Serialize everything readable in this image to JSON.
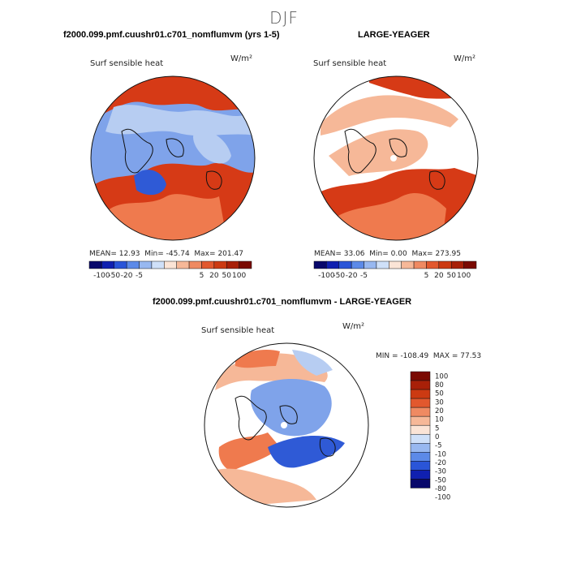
{
  "season": "DJF",
  "variable_label": "Surf sensible heat",
  "units": "W/m²",
  "panels": [
    {
      "title": "f2000.099.pmf.cuushr01.c701_nomflumvm (yrs 1-5)",
      "stats": {
        "mean_label": "MEAN=",
        "mean": "12.93",
        "min_label": "Min=",
        "min": "-45.74",
        "max_label": "Max=",
        "max": "201.47"
      }
    },
    {
      "title": "LARGE-YEAGER",
      "stats": {
        "mean_label": "MEAN=",
        "mean": "33.06",
        "min_label": "Min=",
        "min": "0.00",
        "max_label": "Max=",
        "max": "273.95"
      }
    },
    {
      "title": "f2000.099.pmf.cuushr01.c701_nomflumvm - LARGE-YEAGER",
      "stats": {
        "min_label": "MIN =",
        "min": "-108.49",
        "max_label": "MAX =",
        "max": "77.53"
      }
    }
  ],
  "colorbar_top": {
    "colors": [
      "#08086b",
      "#1020b0",
      "#2a55d8",
      "#5c8ae8",
      "#98b8f0",
      "#cfe0f8",
      "#fbe4d6",
      "#f6b898",
      "#ef8a62",
      "#e2582e",
      "#cc3a12",
      "#a82008",
      "#7a0a02"
    ],
    "tick_labels": [
      "-100",
      "-50",
      "-20",
      "-5",
      "5",
      "20",
      "50",
      "100"
    ]
  },
  "colorbar_diff": {
    "colors": [
      "#7a0a02",
      "#a82008",
      "#cc3a12",
      "#e2582e",
      "#ef8a62",
      "#f6b898",
      "#fbe4d6",
      "#cfe0f8",
      "#98b8f0",
      "#5c8ae8",
      "#2a55d8",
      "#1020b0",
      "#08086b"
    ],
    "tick_labels": [
      "100",
      "80",
      "50",
      "30",
      "20",
      "10",
      "5",
      "0",
      "-5",
      "-10",
      "-20",
      "-30",
      "-50",
      "-80",
      "-100"
    ]
  },
  "legend_map_colors": {
    "warm_strong": "#d63a16",
    "warm_mid": "#ef7a4e",
    "warm_light": "#f6b898",
    "cool_light": "#b7cdf2",
    "cool_mid": "#7fa3ea",
    "cool_strong": "#2f5ad6",
    "land_line": "#111111"
  }
}
